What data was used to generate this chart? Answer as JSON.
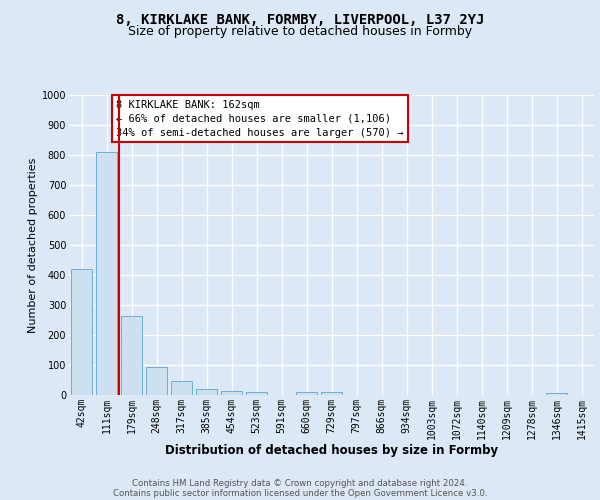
{
  "title1": "8, KIRKLAKE BANK, FORMBY, LIVERPOOL, L37 2YJ",
  "title2": "Size of property relative to detached houses in Formby",
  "xlabel": "Distribution of detached houses by size in Formby",
  "ylabel": "Number of detached properties",
  "footer1": "Contains HM Land Registry data © Crown copyright and database right 2024.",
  "footer2": "Contains public sector information licensed under the Open Government Licence v3.0.",
  "annotation_line1": "8 KIRKLAKE BANK: 162sqm",
  "annotation_line2": "← 66% of detached houses are smaller (1,106)",
  "annotation_line3": "34% of semi-detached houses are larger (570) →",
  "bar_labels": [
    "42sqm",
    "111sqm",
    "179sqm",
    "248sqm",
    "317sqm",
    "385sqm",
    "454sqm",
    "523sqm",
    "591sqm",
    "660sqm",
    "729sqm",
    "797sqm",
    "866sqm",
    "934sqm",
    "1003sqm",
    "1072sqm",
    "1140sqm",
    "1209sqm",
    "1278sqm",
    "1346sqm",
    "1415sqm"
  ],
  "bar_values": [
    420,
    810,
    265,
    92,
    46,
    20,
    13,
    9,
    0,
    11,
    10,
    0,
    0,
    0,
    0,
    0,
    0,
    0,
    0,
    8,
    0
  ],
  "bar_color": "#cce0f0",
  "bar_edge_color": "#6aaed6",
  "red_line_x": 1.5,
  "ylim_max": 1000,
  "yticks": [
    0,
    100,
    200,
    300,
    400,
    500,
    600,
    700,
    800,
    900,
    1000
  ],
  "bg_color": "#dce8f5",
  "grid_color": "#ffffff",
  "red_line_color": "#cc0000",
  "title1_fontsize": 10,
  "title2_fontsize": 9,
  "xlabel_fontsize": 8.5,
  "ylabel_fontsize": 8,
  "tick_fontsize": 7,
  "annotation_fontsize": 7.5,
  "footer_fontsize": 6.2
}
